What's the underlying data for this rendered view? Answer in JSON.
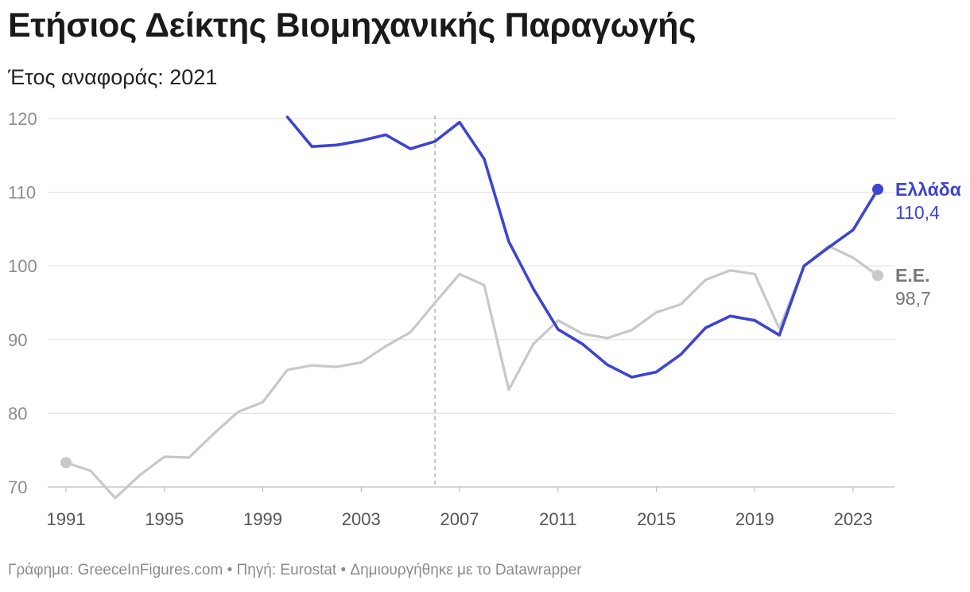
{
  "header": {
    "title": "Ετήσιος Δείκτης Βιομηχανικής Παραγωγής",
    "subtitle": "Έτος αναφοράς: 2021"
  },
  "footer": {
    "text": "Γράφημα: GreeceInFigures.com • Πηγή: Eurostat • Δημιουργήθηκε με το Datawrapper"
  },
  "chart_data": {
    "type": "line",
    "title": "Ετήσιος Δείκτης Βιομηχανικής Παραγωγής",
    "subtitle": "Έτος αναφοράς: 2021",
    "xlabel": "",
    "ylabel": "",
    "xlim": [
      1991,
      2024
    ],
    "ylim": [
      68,
      120
    ],
    "yticks": [
      70,
      80,
      90,
      100,
      110,
      120
    ],
    "xticks": [
      1991,
      1995,
      1999,
      2003,
      2007,
      2011,
      2015,
      2019,
      2023
    ],
    "grid": true,
    "reference_line": {
      "x": 2006,
      "style": "dashed"
    },
    "series": [
      {
        "name": "Ε.Ε.",
        "color": "#c8c8c8",
        "label_color": "#777777",
        "end_label": "98,7",
        "start_marker": true,
        "x": [
          1991,
          1992,
          1993,
          1994,
          1995,
          1996,
          1997,
          1998,
          1999,
          2000,
          2001,
          2002,
          2003,
          2004,
          2005,
          2006,
          2007,
          2008,
          2009,
          2010,
          2011,
          2012,
          2013,
          2014,
          2015,
          2016,
          2017,
          2018,
          2019,
          2020,
          2021,
          2022,
          2023,
          2024
        ],
        "values": [
          73.3,
          72.2,
          68.5,
          71.6,
          74.1,
          74.0,
          77.2,
          80.2,
          81.5,
          85.9,
          86.5,
          86.3,
          86.9,
          89.1,
          91.0,
          95.0,
          98.9,
          97.4,
          83.2,
          89.4,
          92.6,
          90.8,
          90.2,
          91.3,
          93.7,
          94.8,
          98.1,
          99.4,
          98.9,
          91.5,
          100.0,
          102.7,
          101.1,
          98.7
        ]
      },
      {
        "name": "Ελλάδα",
        "color": "#3d44d0",
        "label_color": "#3d44d0",
        "end_label": "110,4",
        "start_marker": false,
        "x": [
          2000,
          2001,
          2002,
          2003,
          2004,
          2005,
          2006,
          2007,
          2008,
          2009,
          2010,
          2011,
          2012,
          2013,
          2014,
          2015,
          2016,
          2017,
          2018,
          2019,
          2020,
          2021,
          2022,
          2023,
          2024
        ],
        "values": [
          120.2,
          116.2,
          116.4,
          117.0,
          117.8,
          115.9,
          116.9,
          119.5,
          114.5,
          103.3,
          96.9,
          91.4,
          89.4,
          86.6,
          84.9,
          85.6,
          88.0,
          91.6,
          93.2,
          92.6,
          90.6,
          100.0,
          102.5,
          104.9,
          110.4
        ]
      }
    ]
  }
}
